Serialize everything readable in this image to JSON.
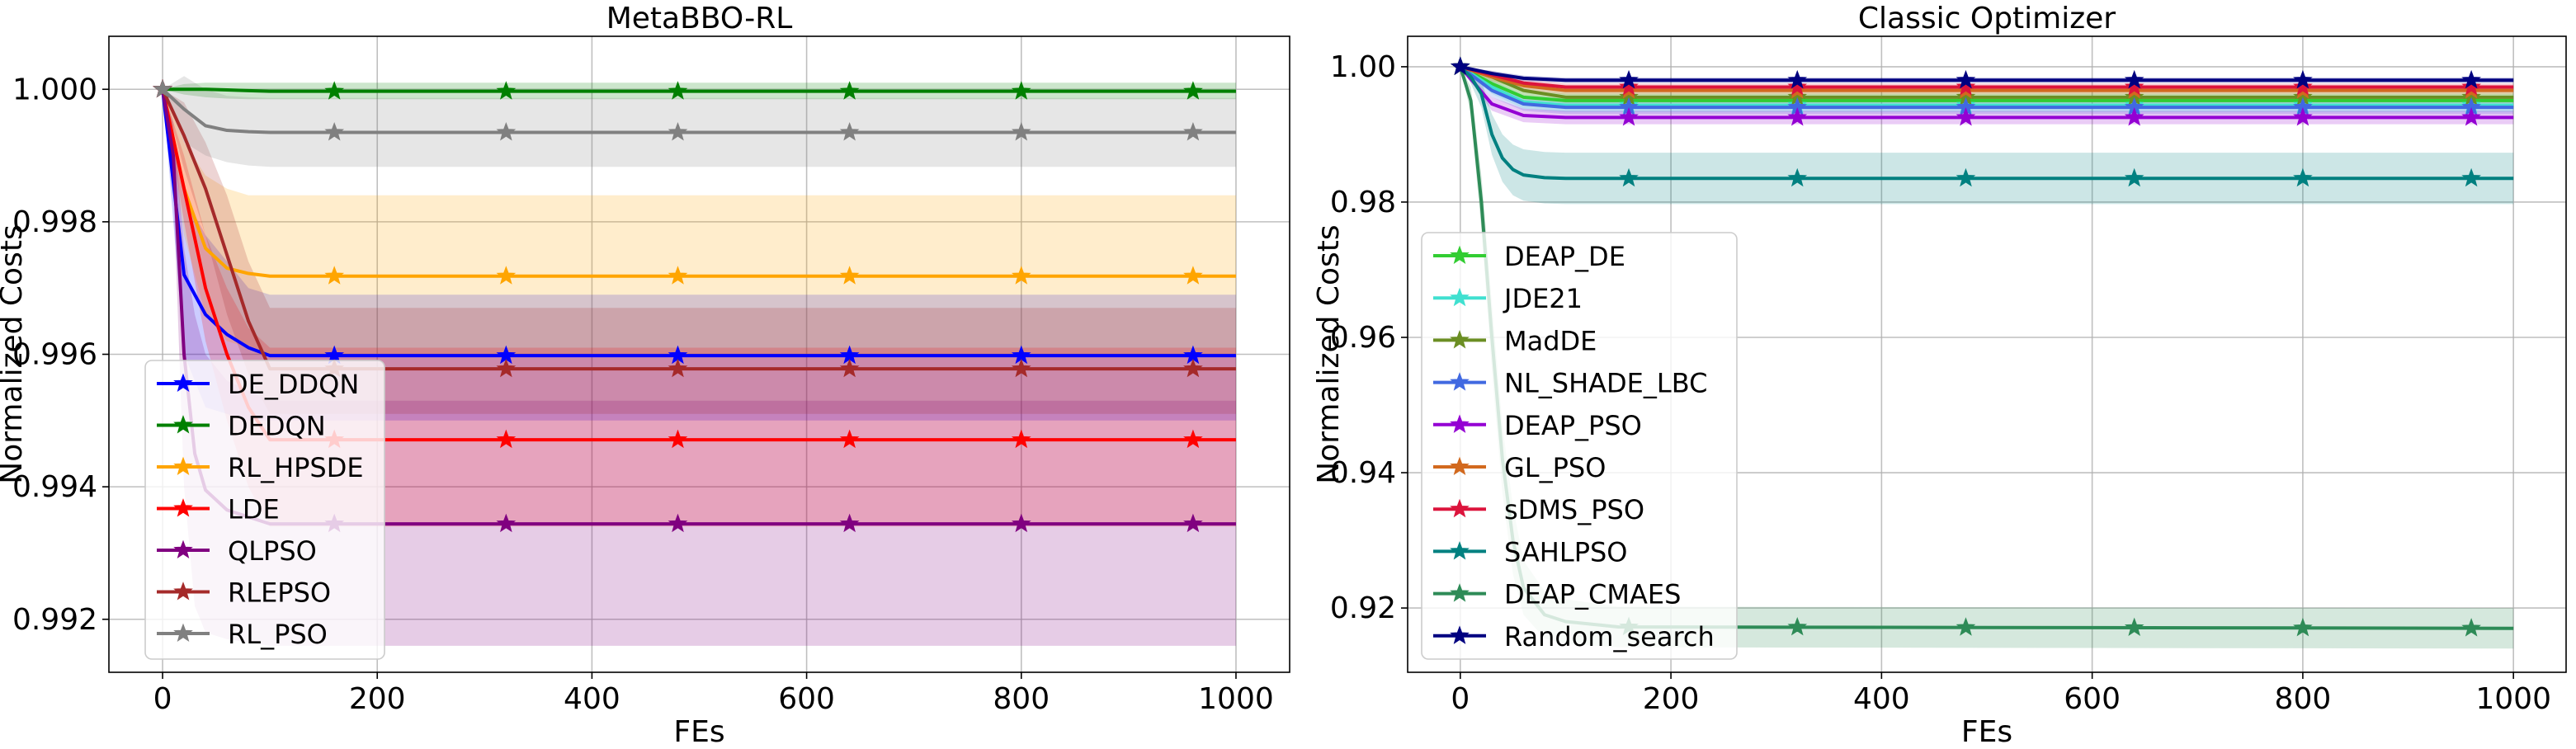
{
  "chart_data": [
    {
      "type": "line",
      "title": "MetaBBO-RL",
      "xlabel": "FEs",
      "ylabel": "Normalized Costs",
      "xlim": [
        -50,
        1050
      ],
      "ylim": [
        0.9912,
        1.0008
      ],
      "xticks": [
        0,
        200,
        400,
        600,
        800,
        1000
      ],
      "xtick_labels": [
        "0",
        "200",
        "400",
        "600",
        "800",
        "1000"
      ],
      "yticks": [
        0.992,
        0.994,
        0.996,
        0.998,
        1.0
      ],
      "ytick_labels": [
        "0.992",
        "0.994",
        "0.996",
        "0.998",
        "1.000"
      ],
      "grid": true,
      "legend_position": "lower-left",
      "marker": "star",
      "marker_x": [
        160,
        320,
        480,
        640,
        800,
        960
      ],
      "series": [
        {
          "name": "DE_DDQN",
          "color": "#0000ff",
          "final": 0.99598,
          "x": [
            0,
            20,
            40,
            60,
            80,
            100,
            1000
          ],
          "y": [
            1.0,
            0.9972,
            0.9966,
            0.9963,
            0.9961,
            0.99598,
            0.99598
          ],
          "band_lower": [
            1.0,
            0.996,
            0.9952,
            0.9951,
            0.995,
            0.995,
            0.995
          ],
          "band_upper": [
            1.0,
            0.9984,
            0.9978,
            0.9974,
            0.997,
            0.9969,
            0.9969
          ]
        },
        {
          "name": "DEDQN",
          "color": "#008000",
          "final": 0.99997,
          "x": [
            0,
            20,
            40,
            60,
            80,
            100,
            1000
          ],
          "y": [
            1.0,
            1.0,
            1.0,
            0.99999,
            0.99998,
            0.99997,
            0.99997
          ],
          "band_lower": [
            1.0,
            0.99992,
            0.99988,
            0.99986,
            0.99985,
            0.99985,
            0.99985
          ],
          "band_upper": [
            1.0,
            1.00008,
            1.0001,
            1.0001,
            1.0001,
            1.0001,
            1.0001
          ]
        },
        {
          "name": "RL_HPSDE",
          "color": "#ffa500",
          "final": 0.99718,
          "x": [
            0,
            20,
            40,
            60,
            80,
            100,
            1000
          ],
          "y": [
            1.0,
            0.9985,
            0.9976,
            0.9973,
            0.99722,
            0.99718,
            0.99718
          ],
          "band_lower": [
            1.0,
            0.9978,
            0.9966,
            0.9962,
            0.9961,
            0.996,
            0.996
          ],
          "band_upper": [
            1.0,
            0.9992,
            0.9987,
            0.9985,
            0.9984,
            0.9984,
            0.9984
          ]
        },
        {
          "name": "LDE",
          "color": "#ff0000",
          "final": 0.99471,
          "x": [
            0,
            20,
            40,
            60,
            80,
            100,
            1000
          ],
          "y": [
            1.0,
            0.9985,
            0.997,
            0.996,
            0.9952,
            0.99471,
            0.99471
          ],
          "band_lower": [
            1.0,
            0.998,
            0.9962,
            0.995,
            0.994,
            0.9934,
            0.9934
          ],
          "band_upper": [
            1.0,
            0.999,
            0.9978,
            0.997,
            0.9964,
            0.9961,
            0.9961
          ]
        },
        {
          "name": "QLPSO",
          "color": "#800080",
          "final": 0.99344,
          "x": [
            0,
            10,
            20,
            30,
            40,
            60,
            100,
            1000
          ],
          "y": [
            1.0,
            0.999,
            0.996,
            0.9945,
            0.99395,
            0.99365,
            0.99344,
            0.99344
          ],
          "band_lower": [
            1.0,
            0.9985,
            0.994,
            0.9922,
            0.9918,
            0.9917,
            0.9916,
            0.9916
          ],
          "band_upper": [
            1.0,
            0.9995,
            0.9976,
            0.9966,
            0.996,
            0.9956,
            0.9953,
            0.9953
          ]
        },
        {
          "name": "RLEPSO",
          "color": "#a52a2a",
          "final": 0.99578,
          "x": [
            0,
            20,
            40,
            60,
            80,
            100,
            1000
          ],
          "y": [
            1.0,
            0.9993,
            0.9985,
            0.9975,
            0.9965,
            0.99578,
            0.99578
          ],
          "band_lower": [
            1.0,
            0.9988,
            0.9978,
            0.9966,
            0.9957,
            0.9951,
            0.9951
          ],
          "band_upper": [
            1.0,
            0.9998,
            0.9992,
            0.9984,
            0.9974,
            0.9967,
            0.9967
          ]
        },
        {
          "name": "RL_PSO",
          "color": "#808080",
          "final": 0.99935,
          "x": [
            0,
            20,
            40,
            60,
            80,
            100,
            1000
          ],
          "y": [
            1.0,
            0.9997,
            0.99945,
            0.99938,
            0.99936,
            0.99935,
            0.99935
          ],
          "band_lower": [
            1.0,
            0.9992,
            0.999,
            0.9989,
            0.99885,
            0.99883,
            0.99883
          ],
          "band_upper": [
            1.0,
            1.0002,
            1.0,
            0.9999,
            0.99988,
            0.99987,
            0.99987
          ]
        }
      ]
    },
    {
      "type": "line",
      "title": "Classic Optimizer",
      "xlabel": "FEs",
      "ylabel": "Normalized Costs",
      "xlim": [
        -50,
        1050
      ],
      "ylim": [
        0.9105,
        1.0045
      ],
      "xticks": [
        0,
        200,
        400,
        600,
        800,
        1000
      ],
      "xtick_labels": [
        "0",
        "200",
        "400",
        "600",
        "800",
        "1000"
      ],
      "yticks": [
        0.92,
        0.94,
        0.96,
        0.98,
        1.0
      ],
      "ytick_labels": [
        "0.92",
        "0.94",
        "0.96",
        "0.98",
        "1.00"
      ],
      "grid": true,
      "legend_position": "left",
      "marker": "star",
      "marker_x": [
        160,
        320,
        480,
        640,
        800,
        960
      ],
      "series": [
        {
          "name": "DEAP_DE",
          "color": "#32cd32",
          "final": 0.995,
          "x": [
            0,
            30,
            60,
            100,
            1000
          ],
          "y": [
            1.0,
            0.9975,
            0.9955,
            0.995,
            0.995
          ],
          "band_lower": [
            1.0,
            0.9965,
            0.9945,
            0.994,
            0.994
          ],
          "band_upper": [
            1.0,
            0.9985,
            0.9965,
            0.996,
            0.996
          ]
        },
        {
          "name": "JDE21",
          "color": "#40e0d0",
          "final": 0.9943,
          "x": [
            0,
            30,
            60,
            100,
            1000
          ],
          "y": [
            1.0,
            0.997,
            0.9948,
            0.9943,
            0.9943
          ],
          "band_lower": [
            1.0,
            0.996,
            0.9938,
            0.9933,
            0.9933
          ],
          "band_upper": [
            1.0,
            0.998,
            0.9958,
            0.9953,
            0.9953
          ]
        },
        {
          "name": "MadDE",
          "color": "#6b8e23",
          "final": 0.9955,
          "x": [
            0,
            30,
            60,
            100,
            1000
          ],
          "y": [
            1.0,
            0.9985,
            0.9965,
            0.9955,
            0.9955
          ],
          "band_lower": [
            1.0,
            0.9977,
            0.9957,
            0.9947,
            0.9947
          ],
          "band_upper": [
            1.0,
            0.9993,
            0.9973,
            0.9963,
            0.9963
          ]
        },
        {
          "name": "NL_SHADE_LBC",
          "color": "#4169e1",
          "final": 0.994,
          "x": [
            0,
            30,
            60,
            100,
            1000
          ],
          "y": [
            1.0,
            0.9965,
            0.9945,
            0.994,
            0.994
          ],
          "band_lower": [
            1.0,
            0.9955,
            0.9935,
            0.993,
            0.993
          ],
          "band_upper": [
            1.0,
            0.9975,
            0.9955,
            0.995,
            0.995
          ]
        },
        {
          "name": "DEAP_PSO",
          "color": "#9400d3",
          "final": 0.9925,
          "x": [
            0,
            30,
            60,
            100,
            1000
          ],
          "y": [
            1.0,
            0.9945,
            0.9928,
            0.9925,
            0.9925
          ],
          "band_lower": [
            1.0,
            0.9935,
            0.9918,
            0.9915,
            0.9915
          ],
          "band_upper": [
            1.0,
            0.9955,
            0.9938,
            0.9935,
            0.9935
          ]
        },
        {
          "name": "GL_PSO",
          "color": "#d2691e",
          "final": 0.9965,
          "x": [
            0,
            30,
            60,
            100,
            1000
          ],
          "y": [
            1.0,
            0.9985,
            0.9972,
            0.9965,
            0.9965
          ],
          "band_lower": [
            1.0,
            0.9979,
            0.9966,
            0.9959,
            0.9959
          ],
          "band_upper": [
            1.0,
            0.9991,
            0.9978,
            0.9971,
            0.9971
          ]
        },
        {
          "name": "sDMS_PSO",
          "color": "#dc143c",
          "final": 0.997,
          "x": [
            0,
            30,
            60,
            100,
            1000
          ],
          "y": [
            1.0,
            0.9988,
            0.9976,
            0.997,
            0.997
          ],
          "band_lower": [
            1.0,
            0.9983,
            0.9971,
            0.9965,
            0.9965
          ],
          "band_upper": [
            1.0,
            0.9993,
            0.9981,
            0.9975,
            0.9975
          ]
        },
        {
          "name": "SAHLPSO",
          "color": "#008080",
          "final": 0.9835,
          "x": [
            0,
            10,
            20,
            30,
            40,
            50,
            60,
            80,
            100,
            1000
          ],
          "y": [
            1.0,
            0.9985,
            0.996,
            0.99,
            0.9865,
            0.9848,
            0.984,
            0.9836,
            0.9835,
            0.9835
          ],
          "band_lower": [
            1.0,
            0.9975,
            0.994,
            0.987,
            0.983,
            0.981,
            0.9802,
            0.9798,
            0.9797,
            0.9797
          ],
          "band_upper": [
            1.0,
            0.9995,
            0.998,
            0.993,
            0.99,
            0.9885,
            0.9878,
            0.9874,
            0.9873,
            0.9873
          ]
        },
        {
          "name": "DEAP_CMAES",
          "color": "#2e8b57",
          "final": 0.917,
          "x": [
            0,
            10,
            20,
            30,
            40,
            50,
            60,
            80,
            100,
            150,
            1000
          ],
          "y": [
            1.0,
            0.995,
            0.98,
            0.96,
            0.942,
            0.93,
            0.923,
            0.919,
            0.918,
            0.9172,
            0.917
          ],
          "band_lower": [
            1.0,
            0.993,
            0.976,
            0.955,
            0.937,
            0.925,
            0.919,
            0.9155,
            0.9147,
            0.9142,
            0.914
          ],
          "band_upper": [
            1.0,
            0.997,
            0.984,
            0.965,
            0.947,
            0.935,
            0.927,
            0.9225,
            0.9213,
            0.9202,
            0.92
          ]
        },
        {
          "name": "Random_search",
          "color": "#000080",
          "final": 0.998,
          "x": [
            0,
            30,
            60,
            100,
            1000
          ],
          "y": [
            1.0,
            0.999,
            0.9983,
            0.998,
            0.998
          ],
          "band_lower": [
            1.0,
            0.9986,
            0.9979,
            0.9976,
            0.9976
          ],
          "band_upper": [
            1.0,
            0.9994,
            0.9987,
            0.9984,
            0.9984
          ]
        }
      ]
    }
  ]
}
